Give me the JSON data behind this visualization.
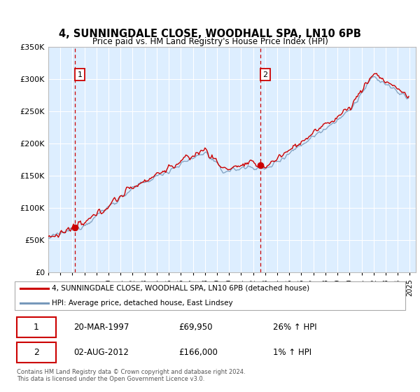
{
  "title": "4, SUNNINGDALE CLOSE, WOODHALL SPA, LN10 6PB",
  "subtitle": "Price paid vs. HM Land Registry's House Price Index (HPI)",
  "legend_line1": "4, SUNNINGDALE CLOSE, WOODHALL SPA, LN10 6PB (detached house)",
  "legend_line2": "HPI: Average price, detached house, East Lindsey",
  "sale1_date": "20-MAR-1997",
  "sale1_price": "£69,950",
  "sale1_hpi": "26% ↑ HPI",
  "sale1_year": 1997.22,
  "sale1_value": 69950,
  "sale2_date": "02-AUG-2012",
  "sale2_price": "£166,000",
  "sale2_hpi": "1% ↑ HPI",
  "sale2_year": 2012.59,
  "sale2_value": 166000,
  "footer1": "Contains HM Land Registry data © Crown copyright and database right 2024.",
  "footer2": "This data is licensed under the Open Government Licence v3.0.",
  "red_color": "#cc0000",
  "blue_color": "#7799bb",
  "bg_color": "#ddeeff",
  "grid_color": "#ffffff",
  "ylim": [
    0,
    350000
  ],
  "xlim_start": 1995.0,
  "xlim_end": 2025.5
}
